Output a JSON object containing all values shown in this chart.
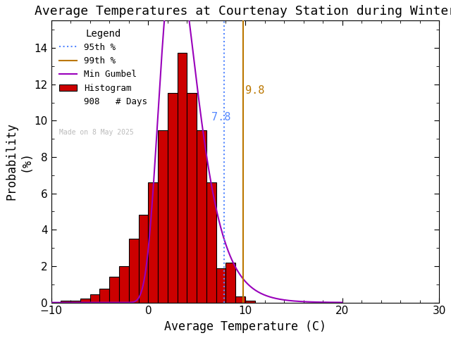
{
  "title": "Average Temperatures at Courtenay Station during Winter",
  "xlabel": "Average Temperature (C)",
  "ylabel": "Probability\n(%)",
  "xlim": [
    -10,
    30
  ],
  "ylim": [
    0,
    15.5
  ],
  "yticks": [
    0,
    2,
    4,
    6,
    8,
    10,
    12,
    14
  ],
  "xticks": [
    -10,
    0,
    10,
    20,
    30
  ],
  "bin_edges": [
    -9,
    -8,
    -7,
    -6,
    -5,
    -4,
    -3,
    -2,
    -1,
    0,
    1,
    2,
    3,
    4,
    5,
    6,
    7,
    8,
    9,
    10
  ],
  "bin_probs": [
    0.11,
    0.11,
    0.22,
    0.44,
    0.77,
    1.43,
    1.98,
    3.52,
    4.84,
    6.61,
    9.46,
    11.54,
    13.74,
    11.54,
    9.46,
    6.61,
    1.87,
    2.2,
    0.33,
    0.11
  ],
  "bar_color": "#cc0000",
  "bar_edge_color": "#000000",
  "bar_edge_width": 0.8,
  "gumbel_color": "#9900bb",
  "gumbel_lw": 1.5,
  "gumbel_mu": 2.8,
  "gumbel_beta": 1.9,
  "line_95_x": 7.8,
  "line_99_x": 9.8,
  "line_95_color": "#5588ff",
  "line_99_color": "#bb7700",
  "line_95_label": "7.8",
  "line_99_label": "9.8",
  "n_days": 908,
  "watermark": "Made on 8 May 2025",
  "watermark_color": "#bbbbbb",
  "legend_title": "Legend",
  "background_color": "#ffffff",
  "title_fontsize": 13,
  "axis_fontsize": 12,
  "tick_fontsize": 11
}
